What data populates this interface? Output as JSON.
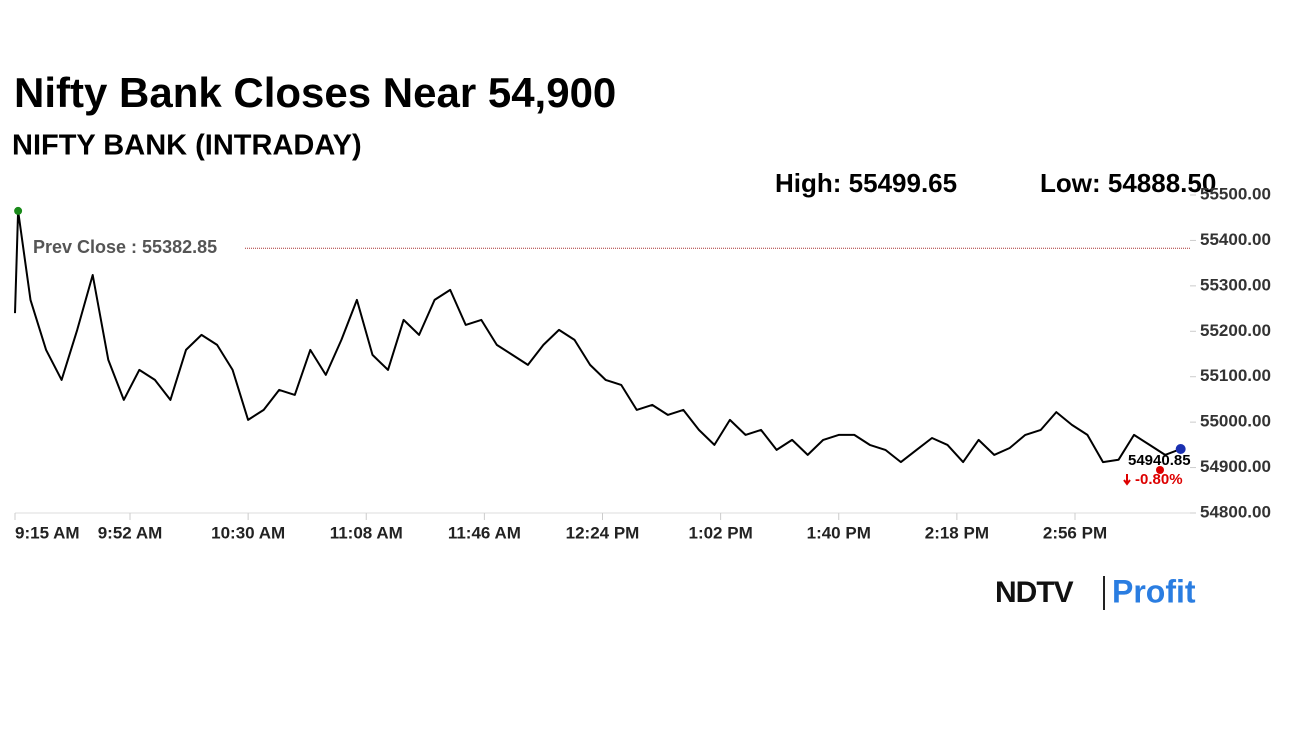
{
  "chart_data": {
    "type": "line",
    "title": "Nifty Bank Closes Near 54,900",
    "subtitle": "NIFTY BANK (INTRADAY)",
    "high_label": "High: 55499.65",
    "low_label": "Low: 54888.50",
    "prev_close": 55382.85,
    "prev_close_label": "Prev Close : 55382.85",
    "close_label": "54940.85",
    "change_label": "-0.80%",
    "brand": {
      "name": "NDTV",
      "product": "Profit"
    },
    "x": [
      "9:15 AM",
      "9:16 AM",
      "9:20 AM",
      "9:25 AM",
      "9:30 AM",
      "9:35 AM",
      "9:40 AM",
      "9:45 AM",
      "9:50 AM",
      "9:55 AM",
      "10:00 AM",
      "10:05 AM",
      "10:10 AM",
      "10:15 AM",
      "10:20 AM",
      "10:25 AM",
      "10:30 AM",
      "10:35 AM",
      "10:40 AM",
      "10:45 AM",
      "10:50 AM",
      "10:55 AM",
      "11:00 AM",
      "11:05 AM",
      "11:10 AM",
      "11:15 AM",
      "11:20 AM",
      "11:25 AM",
      "11:30 AM",
      "11:35 AM",
      "11:40 AM",
      "11:45 AM",
      "11:50 AM",
      "11:55 AM",
      "12:00 PM",
      "12:05 PM",
      "12:10 PM",
      "12:15 PM",
      "12:20 PM",
      "12:25 PM",
      "12:30 PM",
      "12:35 PM",
      "12:40 PM",
      "12:45 PM",
      "12:50 PM",
      "12:55 PM",
      "1:00 PM",
      "1:05 PM",
      "1:10 PM",
      "1:15 PM",
      "1:20 PM",
      "1:25 PM",
      "1:30 PM",
      "1:35 PM",
      "1:40 PM",
      "1:45 PM",
      "1:50 PM",
      "1:55 PM",
      "2:00 PM",
      "2:05 PM",
      "2:10 PM",
      "2:15 PM",
      "2:20 PM",
      "2:25 PM",
      "2:30 PM",
      "2:35 PM",
      "2:40 PM",
      "2:45 PM",
      "2:50 PM",
      "2:55 PM",
      "3:00 PM",
      "3:05 PM",
      "3:10 PM",
      "3:15 PM",
      "3:20 PM",
      "3:25 PM",
      "3:30 PM"
    ],
    "series": [
      {
        "name": "NIFTY BANK",
        "color": "#000000",
        "values": [
          55240,
          55465,
          55269,
          55159,
          55093,
          55203,
          55324,
          55137,
          55049,
          55115,
          55093,
          55049,
          55159,
          55192,
          55170,
          55115,
          55005,
          55027,
          55071,
          55060,
          55159,
          55104,
          55181,
          55269,
          55148,
          55115,
          55225,
          55192,
          55269,
          55291,
          55214,
          55225,
          55170,
          55148,
          55126,
          55170,
          55203,
          55181,
          55126,
          55093,
          55082,
          55027,
          55038,
          55016,
          55027,
          54983,
          54950,
          55005,
          54972,
          54983,
          54939,
          54961,
          54928,
          54961,
          54972,
          54972,
          54950,
          54939,
          54912,
          54939,
          54965,
          54950,
          54912,
          54961,
          54928,
          54943,
          54972,
          54983,
          55022,
          54994,
          54972,
          54912,
          54917,
          54972,
          54950,
          54928,
          54940.85
        ]
      }
    ],
    "xlim": [
      "9:15 AM",
      "3:33 PM"
    ],
    "xticks": [
      "9:15 AM",
      "9:52 AM",
      "10:30 AM",
      "11:08 AM",
      "11:46 AM",
      "12:24 PM",
      "1:02 PM",
      "1:40 PM",
      "2:18 PM",
      "2:56 PM"
    ],
    "ylim": [
      54800,
      55500
    ],
    "yticks": [
      {
        "value": 54800,
        "label": "54800.00"
      },
      {
        "value": 54900,
        "label": "54900.00"
      },
      {
        "value": 55000,
        "label": "55000.00"
      },
      {
        "value": 55100,
        "label": "55100.00"
      },
      {
        "value": 55200,
        "label": "55200.00"
      },
      {
        "value": 55300,
        "label": "55300.00"
      },
      {
        "value": 55400,
        "label": "55400.00"
      },
      {
        "value": 55500,
        "label": "55500.00"
      }
    ]
  }
}
